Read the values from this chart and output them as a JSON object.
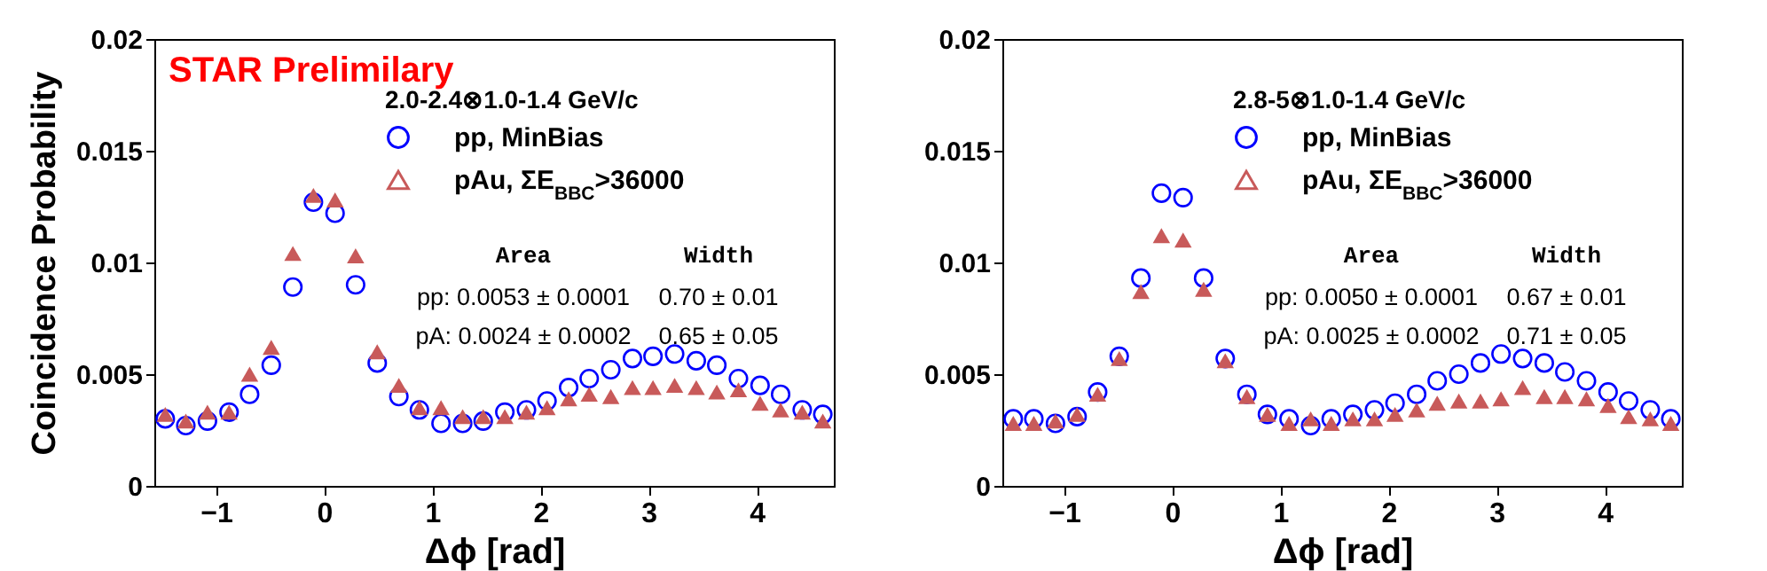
{
  "chart_data": [
    {
      "type": "scatter",
      "xlabel": "Δϕ [rad]",
      "ylabel": "Coincidence Probability",
      "legend_title": "2.0-2.4⊗1.0-1.4 GeV/c",
      "legend": "top right",
      "grid": false,
      "xlim": [
        -1.571,
        4.712
      ],
      "xticks": [
        -1,
        0,
        1,
        2,
        3,
        4
      ],
      "ylim": [
        0,
        0.02
      ],
      "yticks": [
        0,
        0.005,
        0.01,
        0.015,
        0.02
      ],
      "x": [
        -1.47,
        -1.28,
        -1.08,
        -0.88,
        -0.69,
        -0.49,
        -0.29,
        -0.1,
        0.1,
        0.29,
        0.49,
        0.69,
        0.88,
        1.08,
        1.28,
        1.47,
        1.67,
        1.87,
        2.06,
        2.26,
        2.45,
        2.65,
        2.85,
        3.04,
        3.24,
        3.44,
        3.63,
        3.83,
        4.03,
        4.22,
        4.42,
        4.61
      ],
      "series": [
        {
          "name": "pp, MinBias",
          "color": "#0000ff",
          "marker": "circle",
          "values": [
            0.003,
            0.0027,
            0.0029,
            0.0033,
            0.0041,
            0.0054,
            0.0089,
            0.0127,
            0.0122,
            0.009,
            0.0055,
            0.004,
            0.0034,
            0.0028,
            0.0028,
            0.0029,
            0.0033,
            0.0034,
            0.0038,
            0.0044,
            0.0048,
            0.0052,
            0.0057,
            0.0058,
            0.0059,
            0.0056,
            0.0054,
            0.0048,
            0.0045,
            0.0041,
            0.0034,
            0.0032
          ]
        },
        {
          "name": "pAu, ΣE$_{BBC}$>36000",
          "color": "#c85a5a",
          "marker": "triangle",
          "values": [
            0.0032,
            0.0029,
            0.0033,
            0.0033,
            0.005,
            0.0062,
            0.0104,
            0.013,
            0.0128,
            0.0103,
            0.006,
            0.0045,
            0.0035,
            0.0035,
            0.0031,
            0.0031,
            0.0031,
            0.0033,
            0.0035,
            0.0039,
            0.0041,
            0.004,
            0.0044,
            0.0044,
            0.0045,
            0.0044,
            0.0042,
            0.0043,
            0.0037,
            0.0034,
            0.0033,
            0.0029
          ]
        }
      ],
      "annotations": [
        "STAR Prelimilary",
        "Area",
        "Width",
        "pp: 0.0053 ± 0.0001",
        "0.70 ± 0.01",
        "pA: 0.0024 ± 0.0002",
        "0.65 ± 0.05"
      ]
    },
    {
      "type": "scatter",
      "xlabel": "Δϕ [rad]",
      "legend_title": "2.8-5⊗1.0-1.4 GeV/c",
      "legend": "top right",
      "grid": false,
      "xlim": [
        -1.571,
        4.712
      ],
      "xticks": [
        -1,
        0,
        1,
        2,
        3,
        4
      ],
      "ylim": [
        0,
        0.02
      ],
      "yticks": [
        0,
        0.005,
        0.01,
        0.015,
        0.02
      ],
      "x": [
        -1.47,
        -1.28,
        -1.08,
        -0.88,
        -0.69,
        -0.49,
        -0.29,
        -0.1,
        0.1,
        0.29,
        0.49,
        0.69,
        0.88,
        1.08,
        1.28,
        1.47,
        1.67,
        1.87,
        2.06,
        2.26,
        2.45,
        2.65,
        2.85,
        3.04,
        3.24,
        3.44,
        3.63,
        3.83,
        4.03,
        4.22,
        4.42,
        4.61
      ],
      "series": [
        {
          "name": "pp, MinBias",
          "color": "#0000ff",
          "marker": "circle",
          "values": [
            0.003,
            0.003,
            0.0028,
            0.0031,
            0.0042,
            0.0058,
            0.0093,
            0.0131,
            0.0129,
            0.0093,
            0.0057,
            0.0041,
            0.0032,
            0.003,
            0.0027,
            0.003,
            0.0032,
            0.0034,
            0.0037,
            0.0041,
            0.0047,
            0.005,
            0.0055,
            0.0059,
            0.0057,
            0.0055,
            0.0051,
            0.0047,
            0.0042,
            0.0038,
            0.0034,
            0.003
          ]
        },
        {
          "name": "pAu, ΣE$_{BBC}$>36000",
          "color": "#c85a5a",
          "marker": "triangle",
          "values": [
            0.0028,
            0.0028,
            0.0029,
            0.0032,
            0.0041,
            0.0057,
            0.0087,
            0.0112,
            0.011,
            0.0088,
            0.0056,
            0.004,
            0.0032,
            0.0028,
            0.003,
            0.0028,
            0.003,
            0.003,
            0.0032,
            0.0034,
            0.0037,
            0.0038,
            0.0038,
            0.0039,
            0.0044,
            0.004,
            0.004,
            0.0039,
            0.0036,
            0.0031,
            0.003,
            0.0028
          ]
        }
      ],
      "annotations": [
        "Area",
        "Width",
        "pp: 0.0050 ± 0.0001",
        "0.67 ± 0.01",
        "pA: 0.0025 ± 0.0002",
        "0.71 ± 0.05"
      ]
    }
  ]
}
